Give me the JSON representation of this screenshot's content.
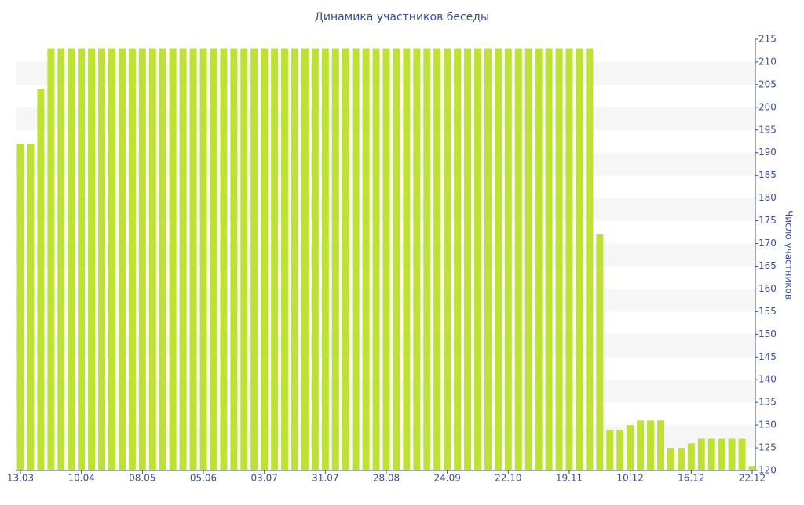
{
  "chart_data": {
    "type": "bar",
    "title": "Динамика участников беседы",
    "y_axis_label": "Число участников",
    "categories": [
      "13.03",
      null,
      null,
      null,
      null,
      null,
      "10.04",
      null,
      null,
      null,
      null,
      null,
      "08.05",
      null,
      null,
      null,
      null,
      null,
      "05.06",
      null,
      null,
      null,
      null,
      null,
      "03.07",
      null,
      null,
      null,
      null,
      null,
      "31.07",
      null,
      null,
      null,
      null,
      null,
      "28.08",
      null,
      null,
      null,
      null,
      null,
      "24.09",
      null,
      null,
      null,
      null,
      null,
      "22.10",
      null,
      null,
      null,
      null,
      null,
      "19.11",
      null,
      null,
      null,
      null,
      null,
      "10.12",
      null,
      null,
      null,
      null,
      null,
      "16.12",
      null,
      null,
      null,
      null,
      null,
      "22.12"
    ],
    "values": [
      192,
      192,
      204,
      213,
      213,
      213,
      213,
      213,
      213,
      213,
      213,
      213,
      213,
      213,
      213,
      213,
      213,
      213,
      213,
      213,
      213,
      213,
      213,
      213,
      213,
      213,
      213,
      213,
      213,
      213,
      213,
      213,
      213,
      213,
      213,
      213,
      213,
      213,
      213,
      213,
      213,
      213,
      213,
      213,
      213,
      213,
      213,
      213,
      213,
      213,
      213,
      213,
      213,
      213,
      213,
      213,
      213,
      172,
      129,
      129,
      130,
      131,
      131,
      131,
      125,
      125,
      126,
      127,
      127,
      127,
      127,
      127,
      121
    ],
    "color": "#bde234",
    "ylim": [
      120,
      215
    ],
    "yticks": [
      120,
      125,
      130,
      135,
      140,
      145,
      150,
      155,
      160,
      165,
      170,
      175,
      180,
      185,
      190,
      195,
      200,
      205,
      210,
      215
    ],
    "grid": "bands",
    "y_axis_side": "right"
  }
}
